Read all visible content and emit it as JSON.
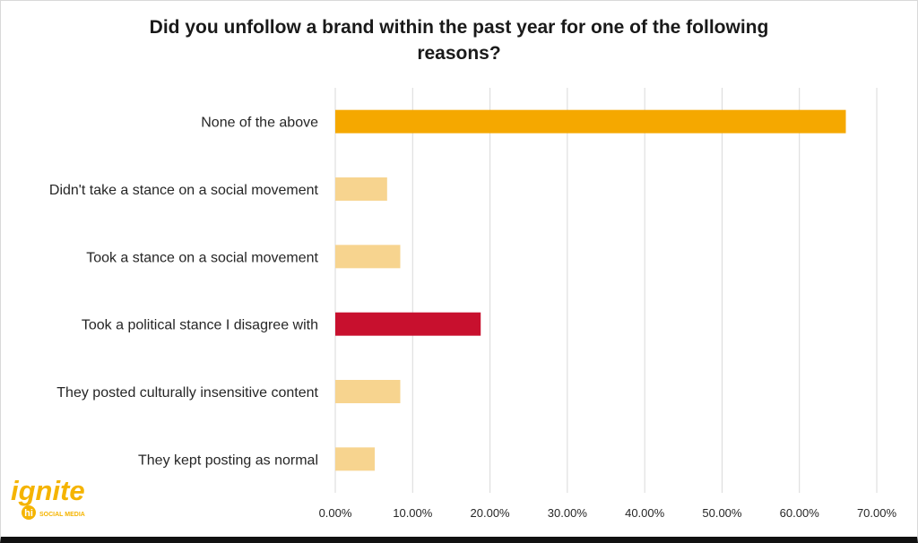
{
  "chart_data": {
    "type": "bar",
    "orientation": "horizontal",
    "title": "Did you unfollow a brand within the past year for one of the following reasons?",
    "categories": [
      "None of the above",
      "Didn't take a stance on a social movement",
      "Took a stance on a social movement",
      "Took a political stance I disagree with",
      "They posted culturally insensitive content",
      "They kept posting as normal"
    ],
    "values": [
      66.0,
      6.7,
      8.4,
      18.8,
      8.4,
      5.1
    ],
    "bar_colors": [
      "#f5a800",
      "#f7d48f",
      "#f7d48f",
      "#c8102e",
      "#f7d48f",
      "#f7d48f"
    ],
    "xlim": [
      0,
      70
    ],
    "xticks": [
      0,
      10,
      20,
      30,
      40,
      50,
      60,
      70
    ],
    "xtick_labels": [
      "0.00%",
      "10.00%",
      "20.00%",
      "30.00%",
      "40.00%",
      "50.00%",
      "60.00%",
      "70.00%"
    ],
    "xlabel": "",
    "ylabel": "",
    "grid": "vertical",
    "legend": "none"
  },
  "logo": {
    "wordmark": "ignite",
    "badge": "hi",
    "tagline": "SOCIAL MEDIA",
    "color": "#f5b400"
  }
}
